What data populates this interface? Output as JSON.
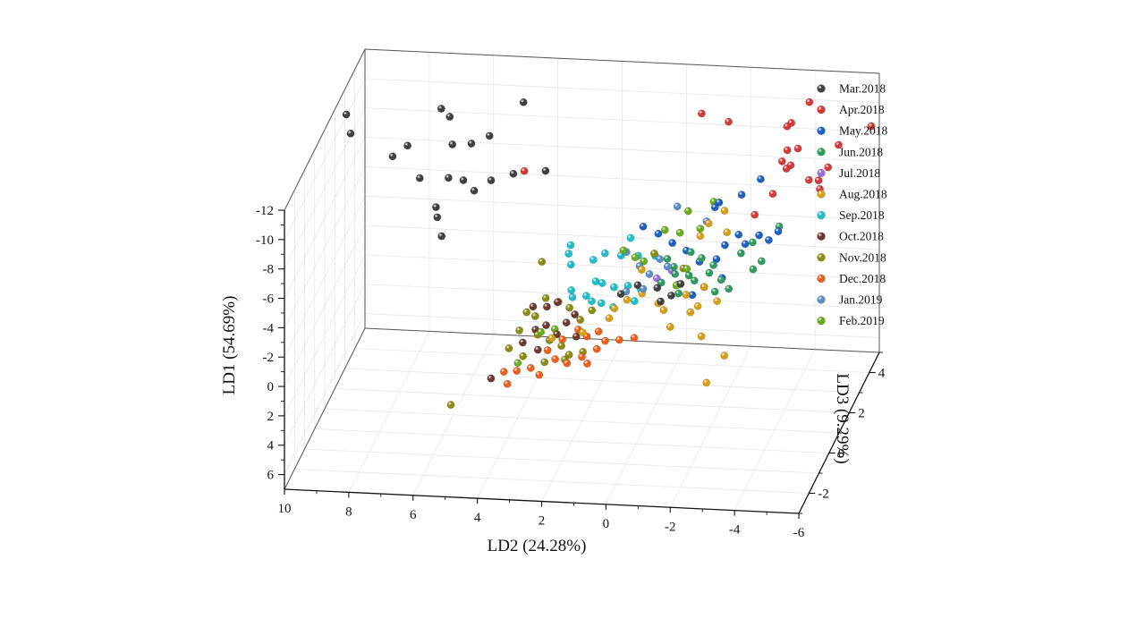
{
  "chart_data": {
    "type": "scatter",
    "projection": "3d",
    "axes": {
      "x": {
        "label": "LD2 (24.28%)",
        "range": [
          10,
          -6
        ],
        "ticks": [
          10,
          8,
          6,
          4,
          2,
          0,
          -2,
          -4,
          -6
        ]
      },
      "y": {
        "label": "LD3 (9.29%)",
        "range": [
          -3,
          5
        ],
        "ticks": [
          -2,
          0,
          2,
          4
        ]
      },
      "z": {
        "label": "LD1 (54.69%)",
        "range": [
          7,
          -12
        ],
        "ticks": [
          6,
          4,
          2,
          0,
          -2,
          -4,
          -6,
          -8,
          -10,
          -12
        ]
      }
    },
    "grid": true,
    "legend_position": "right",
    "series": [
      {
        "name": "Mar.2018",
        "color": "#404040",
        "points": [
          [
            9.8,
            2.5,
            -11
          ],
          [
            9.6,
            2.3,
            -10
          ],
          [
            7.0,
            3.0,
            -11
          ],
          [
            6.8,
            3.2,
            -10.2
          ],
          [
            8.2,
            2.0,
            -9
          ],
          [
            7.8,
            2.2,
            -9.5
          ],
          [
            6.5,
            2.5,
            -9.3
          ],
          [
            6.0,
            2.8,
            -9
          ],
          [
            5.5,
            3.0,
            -9.3
          ],
          [
            4.6,
            3.5,
            -11
          ],
          [
            7.2,
            1.5,
            -8.3
          ],
          [
            6.4,
            1.8,
            -8
          ],
          [
            6.0,
            2.0,
            -7.6
          ],
          [
            5.6,
            1.8,
            -7.2
          ],
          [
            5.2,
            2.2,
            -7.4
          ],
          [
            4.6,
            2.5,
            -7.5
          ],
          [
            3.6,
            2.5,
            -7.8
          ],
          [
            6.6,
            1.2,
            -6.8
          ],
          [
            6.5,
            1.0,
            -6.4
          ],
          [
            6.3,
            0.8,
            -5.4
          ],
          [
            -0.5,
            0.5,
            -3
          ],
          [
            -1,
            0.3,
            -2.8
          ],
          [
            0.2,
            0.8,
            -2.7
          ],
          [
            -0.7,
            0.2,
            -2.5
          ],
          [
            -1.2,
            0.6,
            -3.2
          ],
          [
            0.6,
            0.4,
            -2.6
          ]
        ]
      },
      {
        "name": "Apr.2018",
        "color": "#d23a3a",
        "points": [
          [
            -1.1,
            3.0,
            -11.5
          ],
          [
            -2.0,
            2.8,
            -11.3
          ],
          [
            -4.2,
            3.8,
            -11.5
          ],
          [
            -3.6,
            3.5,
            -10.2
          ],
          [
            -3.7,
            3.6,
            -10.3
          ],
          [
            -6.0,
            4.2,
            -9.5
          ],
          [
            -3.7,
            3.2,
            -9
          ],
          [
            -4.0,
            3.3,
            -9
          ],
          [
            -5.2,
            3.5,
            -9.1
          ],
          [
            -3.6,
            3.0,
            -8.5
          ],
          [
            -3.9,
            2.9,
            -8.4
          ],
          [
            -3.8,
            2.8,
            -8.3
          ],
          [
            -5.0,
            3.1,
            -8.1
          ],
          [
            -4.5,
            2.8,
            -7.6
          ],
          [
            -4.8,
            2.8,
            -7.6
          ],
          [
            -4.9,
            2.6,
            -7.3
          ],
          [
            -3.5,
            2.4,
            -7.1
          ],
          [
            -3.0,
            2.2,
            -5.9
          ],
          [
            4.2,
            2.3,
            -8
          ]
        ]
      },
      {
        "name": "May.2018",
        "color": "#1f5fbf",
        "points": [
          [
            -3.0,
            2.8,
            -7.5
          ],
          [
            -2.5,
            2.5,
            -6.8
          ],
          [
            -1.8,
            2.5,
            -6.2
          ],
          [
            -1.7,
            2.4,
            -6.0
          ],
          [
            -3.2,
            2.0,
            -4.8
          ],
          [
            -3.5,
            2.0,
            -4.5
          ],
          [
            -3.7,
            2.3,
            -4.7
          ],
          [
            -2.5,
            2.2,
            -4.5
          ],
          [
            -2.2,
            1.8,
            -4.3
          ],
          [
            -2.8,
            1.9,
            -4.3
          ],
          [
            0.0,
            2.2,
            -4.3
          ],
          [
            -0.5,
            2.0,
            -4.0
          ],
          [
            -1.0,
            1.8,
            -3.8
          ],
          [
            -1.5,
            1.5,
            -3.5
          ],
          [
            -2.0,
            1.6,
            -3.6
          ],
          [
            -2.3,
            1.2,
            -2.9
          ],
          [
            -1.8,
            1.0,
            -2.5
          ],
          [
            -1.5,
            0.8,
            -2.2
          ],
          [
            0.5,
            2.3,
            -4.6
          ]
        ]
      },
      {
        "name": "Jun.2018",
        "color": "#2e9b5f",
        "points": [
          [
            -3.7,
            2.4,
            -4.9
          ],
          [
            -3.0,
            2.0,
            -4.3
          ],
          [
            -2.7,
            1.8,
            -3.8
          ],
          [
            -3.4,
            1.6,
            -3.6
          ],
          [
            -3.2,
            1.4,
            -3.3
          ],
          [
            -1.2,
            1.6,
            -4
          ],
          [
            -1.6,
            1.4,
            -3.9
          ],
          [
            -2.0,
            1.3,
            -3.6
          ],
          [
            -0.8,
            1.2,
            -3.5
          ],
          [
            -0.5,
            1.5,
            -3.6
          ],
          [
            -1.9,
            1.2,
            -3.2
          ],
          [
            -2.3,
            1.1,
            -2.9
          ],
          [
            -1.5,
            1.0,
            -2.9
          ],
          [
            -0.5,
            0.9,
            -2.8
          ],
          [
            -0.9,
            1.0,
            -3.3
          ],
          [
            -1.3,
            1.1,
            -3.1
          ],
          [
            -2.6,
            0.9,
            -2.6
          ],
          [
            -2.2,
            0.8,
            -2.5
          ],
          [
            -1.1,
            0.7,
            -2.4
          ]
        ]
      },
      {
        "name": "Jul.2018",
        "color": "#9b6fd4",
        "points": [
          [
            -1.0,
            1.0,
            -2.6
          ],
          [
            -0.3,
            1.1,
            -2.8
          ],
          [
            -0.7,
            1.3,
            -3.1
          ]
        ]
      },
      {
        "name": "Aug.2018",
        "color": "#d4a017",
        "points": [
          [
            -2.0,
            2.4,
            -5.8
          ],
          [
            -1.6,
            2.1,
            -5.3
          ],
          [
            -2.2,
            2.0,
            -4.9
          ],
          [
            -1.4,
            1.9,
            -4.7
          ],
          [
            0.2,
            1.2,
            -3.2
          ],
          [
            -1.8,
            1.0,
            -2.5
          ],
          [
            -1.3,
            0.8,
            -2.2
          ],
          [
            -2.3,
            0.7,
            -2.0
          ],
          [
            -0.5,
            0.6,
            -1.8
          ],
          [
            -1.7,
            0.7,
            -1.6
          ],
          [
            0.1,
            0.9,
            -2.0
          ],
          [
            0.5,
            0.7,
            -1.8
          ],
          [
            0.8,
            0.4,
            -1.6
          ],
          [
            0.9,
            0.2,
            -1.2
          ],
          [
            -0.7,
            0.5,
            -1.5
          ],
          [
            -1.5,
            0.6,
            -1.3
          ],
          [
            -1.0,
            0.2,
            -0.8
          ],
          [
            -2.0,
            0.1,
            -0.4
          ],
          [
            -2.9,
            -0.5,
            0
          ],
          [
            1.6,
            -0.2,
            -0.7
          ],
          [
            2.5,
            -0.4,
            -0.5
          ],
          [
            -2.5,
            -1.0,
            1.2
          ]
        ]
      },
      {
        "name": "Sep.2018",
        "color": "#22bcc8",
        "points": [
          [
            2.6,
            1.8,
            -3.8
          ],
          [
            2.6,
            1.6,
            -3.5
          ],
          [
            2.5,
            1.5,
            -2.9
          ],
          [
            0.8,
            2.0,
            -4.2
          ],
          [
            1.8,
            1.5,
            -3.3
          ],
          [
            1.5,
            1.7,
            -3.5
          ],
          [
            1.0,
            1.7,
            -3.4
          ],
          [
            0.5,
            1.8,
            -3.3
          ],
          [
            0.0,
            1.9,
            -3.2
          ],
          [
            1.6,
            1.1,
            -2.4
          ],
          [
            1.4,
            1.1,
            -2.3
          ],
          [
            1.0,
            1.0,
            -2.2
          ],
          [
            0.6,
            1.1,
            -2.2
          ],
          [
            0.2,
            1.1,
            -2.0
          ],
          [
            1.8,
            0.8,
            -1.8
          ],
          [
            1.6,
            0.7,
            -1.6
          ],
          [
            1.3,
            0.7,
            -1.5
          ],
          [
            0.9,
            0.6,
            -1.4
          ],
          [
            0.3,
            0.8,
            -1.6
          ],
          [
            2.3,
            0.9,
            -2.0
          ],
          [
            2.2,
            0.7,
            -1.8
          ]
        ]
      },
      {
        "name": "Oct.2018",
        "color": "#6b3a2e",
        "points": [
          [
            2.6,
            0.5,
            -1.7
          ],
          [
            2.9,
            0.4,
            -1.5
          ],
          [
            3.3,
            0.3,
            -1.6
          ],
          [
            2.0,
            0.3,
            -1.2
          ],
          [
            2.2,
            0.1,
            -0.9
          ],
          [
            2.8,
            0.0,
            -0.8
          ],
          [
            3.1,
            -0.1,
            -0.6
          ],
          [
            2.4,
            -0.2,
            -0.5
          ],
          [
            1.8,
            -0.2,
            -0.4
          ],
          [
            3.4,
            -0.4,
            -0.1
          ],
          [
            2.9,
            -0.5,
            0.2
          ],
          [
            4.2,
            -1.0,
            1.6
          ]
        ]
      },
      {
        "name": "Nov.2018",
        "color": "#8a8a14",
        "points": [
          [
            3.4,
            1.5,
            -3.0
          ],
          [
            3.0,
            0.6,
            -1.8
          ],
          [
            2.6,
            0.6,
            -1.6
          ],
          [
            2.2,
            0.4,
            -1.5
          ],
          [
            3.5,
            0.3,
            -1.2
          ],
          [
            3.2,
            0.2,
            -1.1
          ],
          [
            1.8,
            0.2,
            -1.0
          ],
          [
            1.5,
            0.4,
            -1.4
          ],
          [
            3.6,
            -0.1,
            -0.5
          ],
          [
            3.0,
            -0.2,
            -0.4
          ],
          [
            2.6,
            -0.3,
            -0.2
          ],
          [
            2.2,
            -0.4,
            0
          ],
          [
            3.8,
            -0.5,
            0.2
          ],
          [
            1.9,
            -0.6,
            0.3
          ],
          [
            3.3,
            -0.7,
            0.4
          ],
          [
            2.6,
            -0.8,
            0.6
          ],
          [
            2.0,
            -0.7,
            0.5
          ],
          [
            1.5,
            -0.5,
            0.2
          ],
          [
            5.2,
            -1.8,
            2.4
          ],
          [
            0.0,
            1.8,
            -3.5
          ],
          [
            -1.0,
            1.5,
            -3.0
          ]
        ]
      },
      {
        "name": "Dec.2018",
        "color": "#e8601c",
        "points": [
          [
            1.8,
            0.0,
            -0.6
          ],
          [
            2.2,
            -0.3,
            -0.3
          ],
          [
            1.5,
            -0.1,
            -0.3
          ],
          [
            1.2,
            0.1,
            -0.4
          ],
          [
            2.6,
            -0.5,
            0.2
          ],
          [
            2.3,
            -0.7,
            0.5
          ],
          [
            1.9,
            -0.8,
            0.6
          ],
          [
            1.5,
            -0.6,
            0.4
          ],
          [
            1.1,
            -0.4,
            0.1
          ],
          [
            3.8,
            -1.0,
            1.1
          ],
          [
            3.4,
            -1.0,
            1.0
          ],
          [
            3.0,
            -0.9,
            0.9
          ],
          [
            2.7,
            -1.0,
            1.2
          ],
          [
            3.6,
            -1.3,
            1.5
          ],
          [
            1.3,
            -0.7,
            0.7
          ],
          [
            0.9,
            -0.2,
            -0.2
          ],
          [
            0.4,
            -0.4,
            -0.6
          ],
          [
            0.0,
            -0.2,
            -0.5
          ]
        ]
      },
      {
        "name": "Jan.2019",
        "color": "#5c8ec4",
        "points": [
          [
            -1.5,
            2.2,
            -5.3
          ],
          [
            -0.5,
            2.5,
            -5.8
          ],
          [
            0.8,
            1.6,
            -3.8
          ],
          [
            -0.3,
            1.4,
            -3.7
          ],
          [
            -0.6,
            1.2,
            -3.5
          ],
          [
            0.3,
            1.3,
            -3.3
          ],
          [
            -0.1,
            1.0,
            -3.2
          ],
          [
            0.0,
            0.7,
            -2.6
          ],
          [
            0.5,
            0.6,
            -2.5
          ]
        ]
      },
      {
        "name": "Feb.2019",
        "color": "#6aaa1e",
        "points": [
          [
            -1.6,
            2.6,
            -6.1
          ],
          [
            -0.9,
            2.3,
            -5.8
          ],
          [
            -1.4,
            1.9,
            -5.2
          ],
          [
            -0.8,
            1.8,
            -5.0
          ],
          [
            -0.3,
            1.9,
            -5.0
          ],
          [
            0.9,
            1.6,
            -3.9
          ],
          [
            0.5,
            1.5,
            -3.6
          ],
          [
            0.2,
            1.4,
            -3.5
          ],
          [
            -1.2,
            1.2,
            -3.4
          ],
          [
            2.9,
            -0.2,
            -0.6
          ],
          [
            2.5,
            -0.1,
            -0.7
          ],
          [
            3.4,
            -0.9,
            0.6
          ],
          [
            -1.0,
            0.8,
            -2.8
          ]
        ]
      }
    ]
  }
}
